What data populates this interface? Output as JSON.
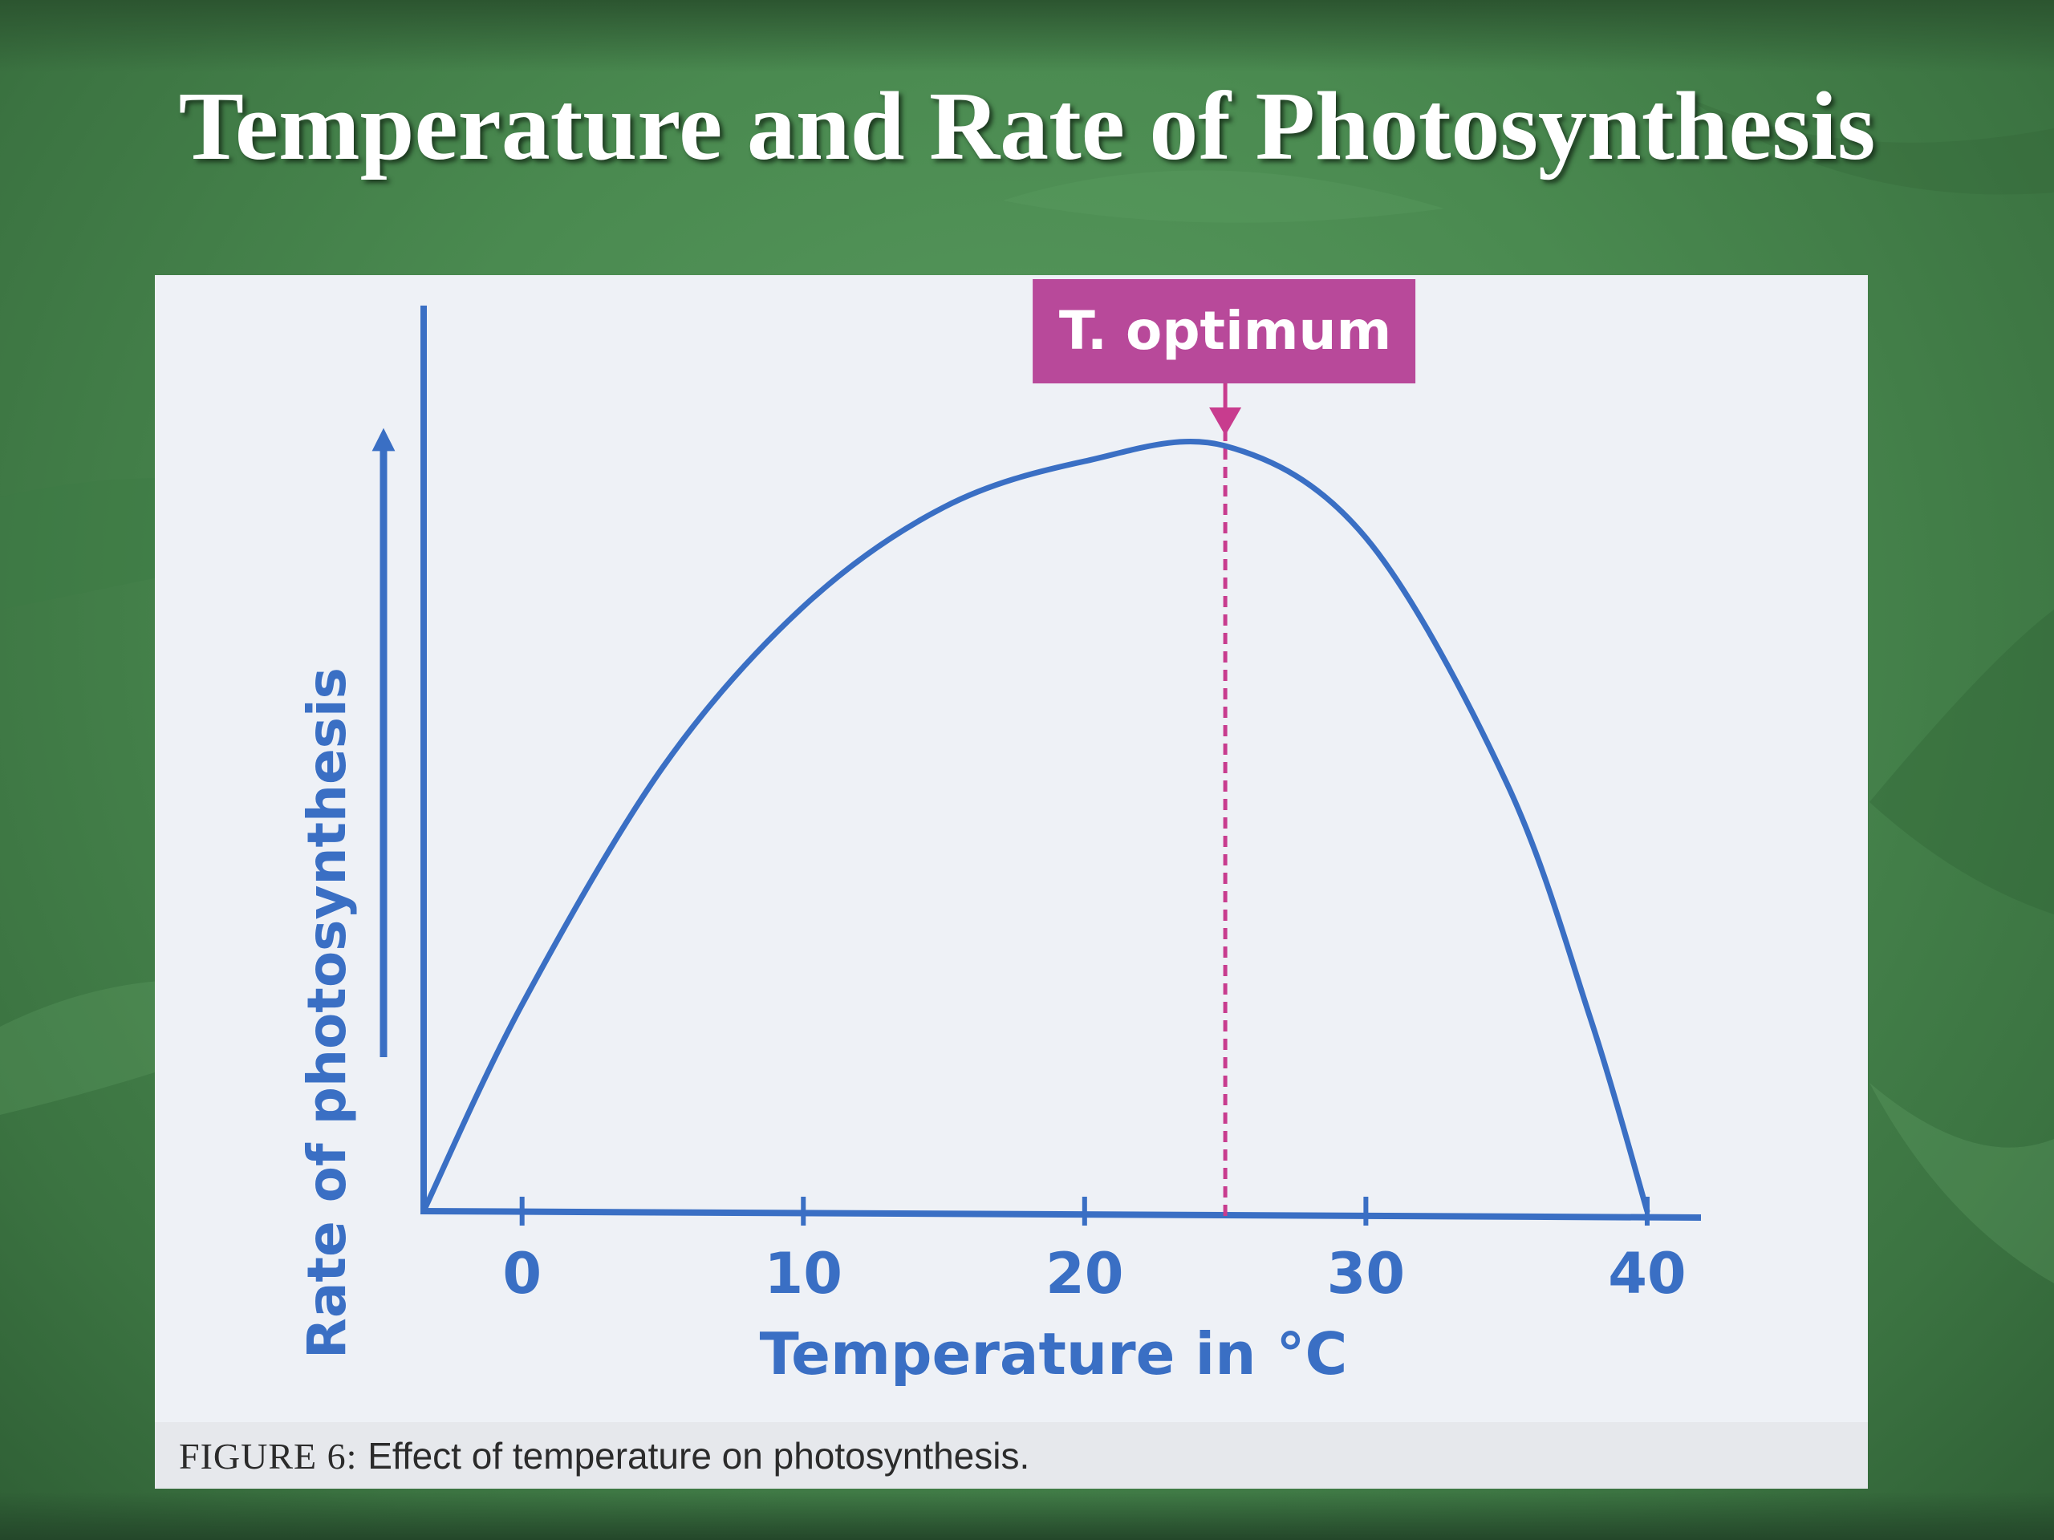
{
  "slide": {
    "title": "Temperature and Rate of Photosynthesis"
  },
  "figure": {
    "caption_label": "FIGURE 6:",
    "caption_text": "Effect of temperature on photosynthesis."
  },
  "colors": {
    "curve": "#3a6fc4",
    "axis": "#3a6fc4",
    "optimum_box": "#b8499a",
    "optimum_line": "#c83c8e",
    "panel_bg": "#eef1f6"
  },
  "chart_data": {
    "type": "line",
    "title": "",
    "xlabel": "Temperature in °C",
    "ylabel": "Rate of photosynthesis",
    "xlim": [
      -3.5,
      41
    ],
    "ylim": [
      0,
      1
    ],
    "x_ticks": [
      0,
      10,
      20,
      30,
      40
    ],
    "x_tick_labels": [
      "0",
      "10",
      "20",
      "30",
      "40"
    ],
    "y_ticks_shown": false,
    "grid": false,
    "series": [
      {
        "values_x": [
          -3.5,
          0,
          5,
          10,
          15,
          20,
          25,
          30,
          35,
          38,
          40
        ],
        "values_y": [
          0,
          0.27,
          0.58,
          0.79,
          0.92,
          0.98,
          1.0,
          0.88,
          0.56,
          0.25,
          0
        ]
      }
    ],
    "annotations": [
      {
        "label": "T. optimum",
        "x": 25,
        "style": "dashed vertical line with arrow"
      }
    ]
  }
}
